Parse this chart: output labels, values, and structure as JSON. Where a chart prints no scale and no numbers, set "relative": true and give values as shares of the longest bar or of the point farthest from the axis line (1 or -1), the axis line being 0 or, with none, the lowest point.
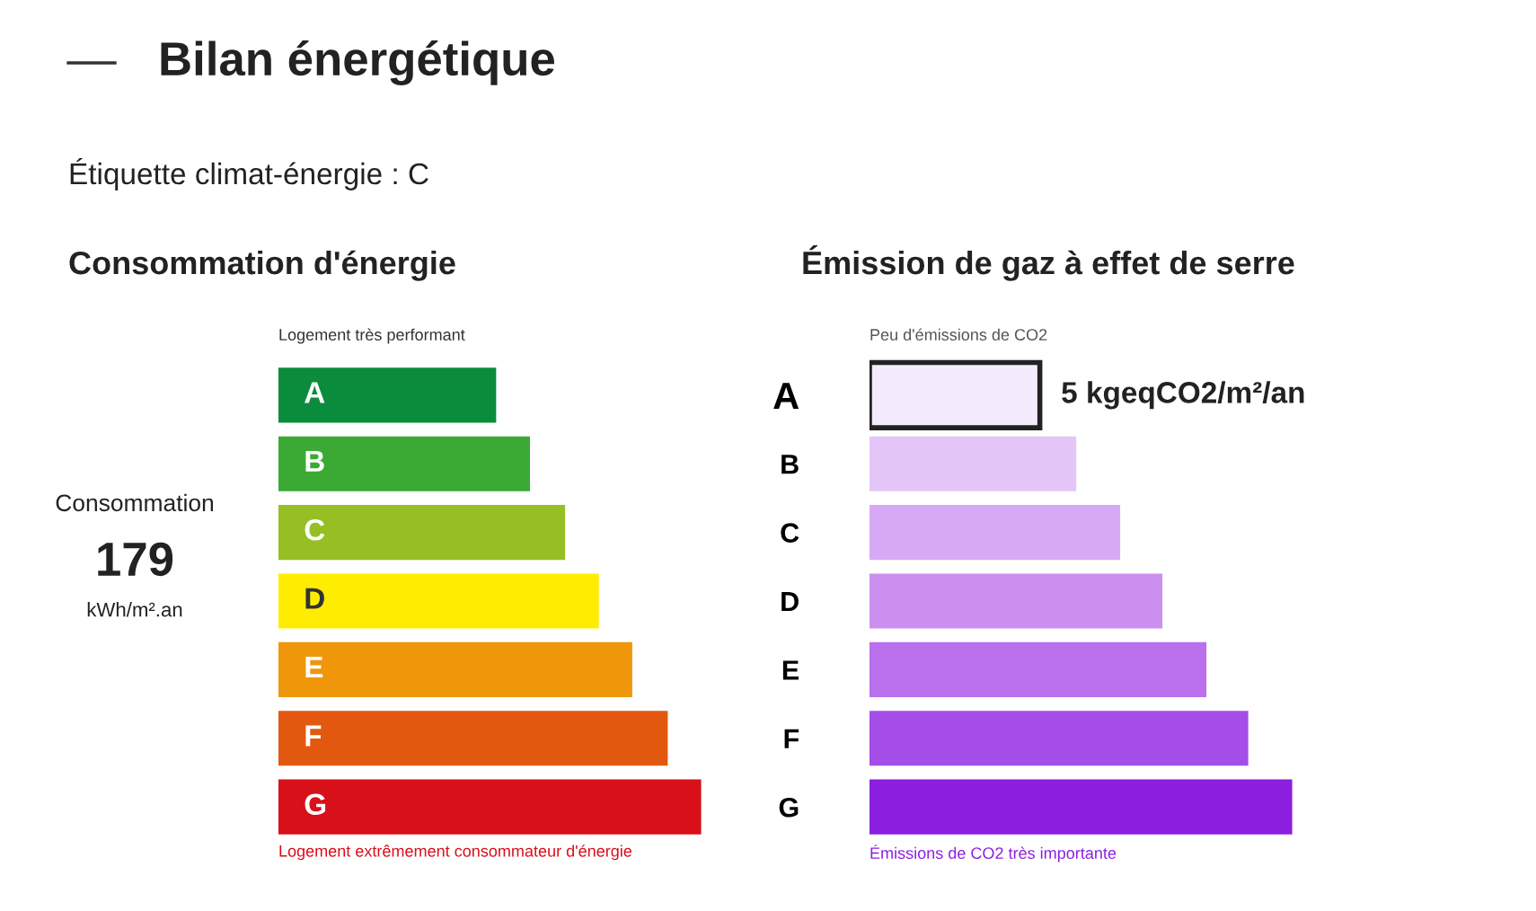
{
  "chart_data": [
    {
      "type": "bar",
      "orientation": "horizontal",
      "relative": true,
      "title": "Consommation d'énergie",
      "tick_labels": false,
      "categories": [
        "A",
        "B",
        "C",
        "D",
        "E",
        "F",
        "G"
      ],
      "values": [
        0.515,
        0.595,
        0.678,
        0.758,
        0.837,
        0.921,
        1
      ],
      "colors": [
        "#0a8c3c",
        "#3aaa35",
        "#95bf23",
        "#ffed00",
        "#f0960b",
        "#e2580f",
        "#d7101a"
      ],
      "annotations": [
        "Logement très performant",
        "Logement extrêmement consommateur d'énergie",
        "Consommation",
        "179",
        "kWh/m².an"
      ]
    },
    {
      "type": "bar",
      "orientation": "horizontal",
      "relative": true,
      "title": "Émission de gaz à effet de serre",
      "tick_labels": "y",
      "categories": [
        "A",
        "B",
        "C",
        "D",
        "E",
        "F",
        "G"
      ],
      "values": [
        0.403,
        0.489,
        0.593,
        0.693,
        0.797,
        0.896,
        1
      ],
      "colors": [
        "#f4ebfc",
        "#e3c6f7",
        "#d6a9f5",
        "#cb8ff0",
        "#ba6fec",
        "#a44de8",
        "#8c1fe0"
      ],
      "annotations": [
        "Peu d'émissions de CO2",
        "Émissions de CO2 très importante",
        {
          "text": "5 kgeqCO2/m²/an",
          "x": 0.403,
          "y": "A"
        }
      ]
    },
    {
      "type": "other",
      "title": "Bilan énergétique",
      "subtitle": "Étiquette climat-énergie : C"
    }
  ]
}
